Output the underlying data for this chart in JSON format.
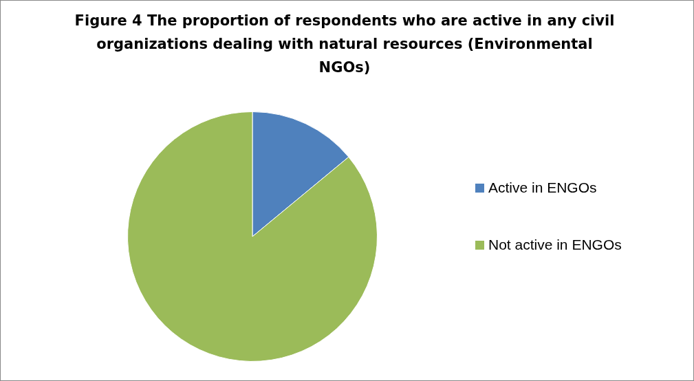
{
  "chart_data": {
    "type": "pie",
    "title": "Figure 4 The proportion of respondents who are active in any civil organizations dealing with natural resources (Environmental NGOs)",
    "categories": [
      "Active in ENGOs",
      "Not active in ENGOs"
    ],
    "values": [
      14,
      86
    ],
    "colors": [
      "#4f81bd",
      "#9bbb59"
    ],
    "legend": "right"
  }
}
